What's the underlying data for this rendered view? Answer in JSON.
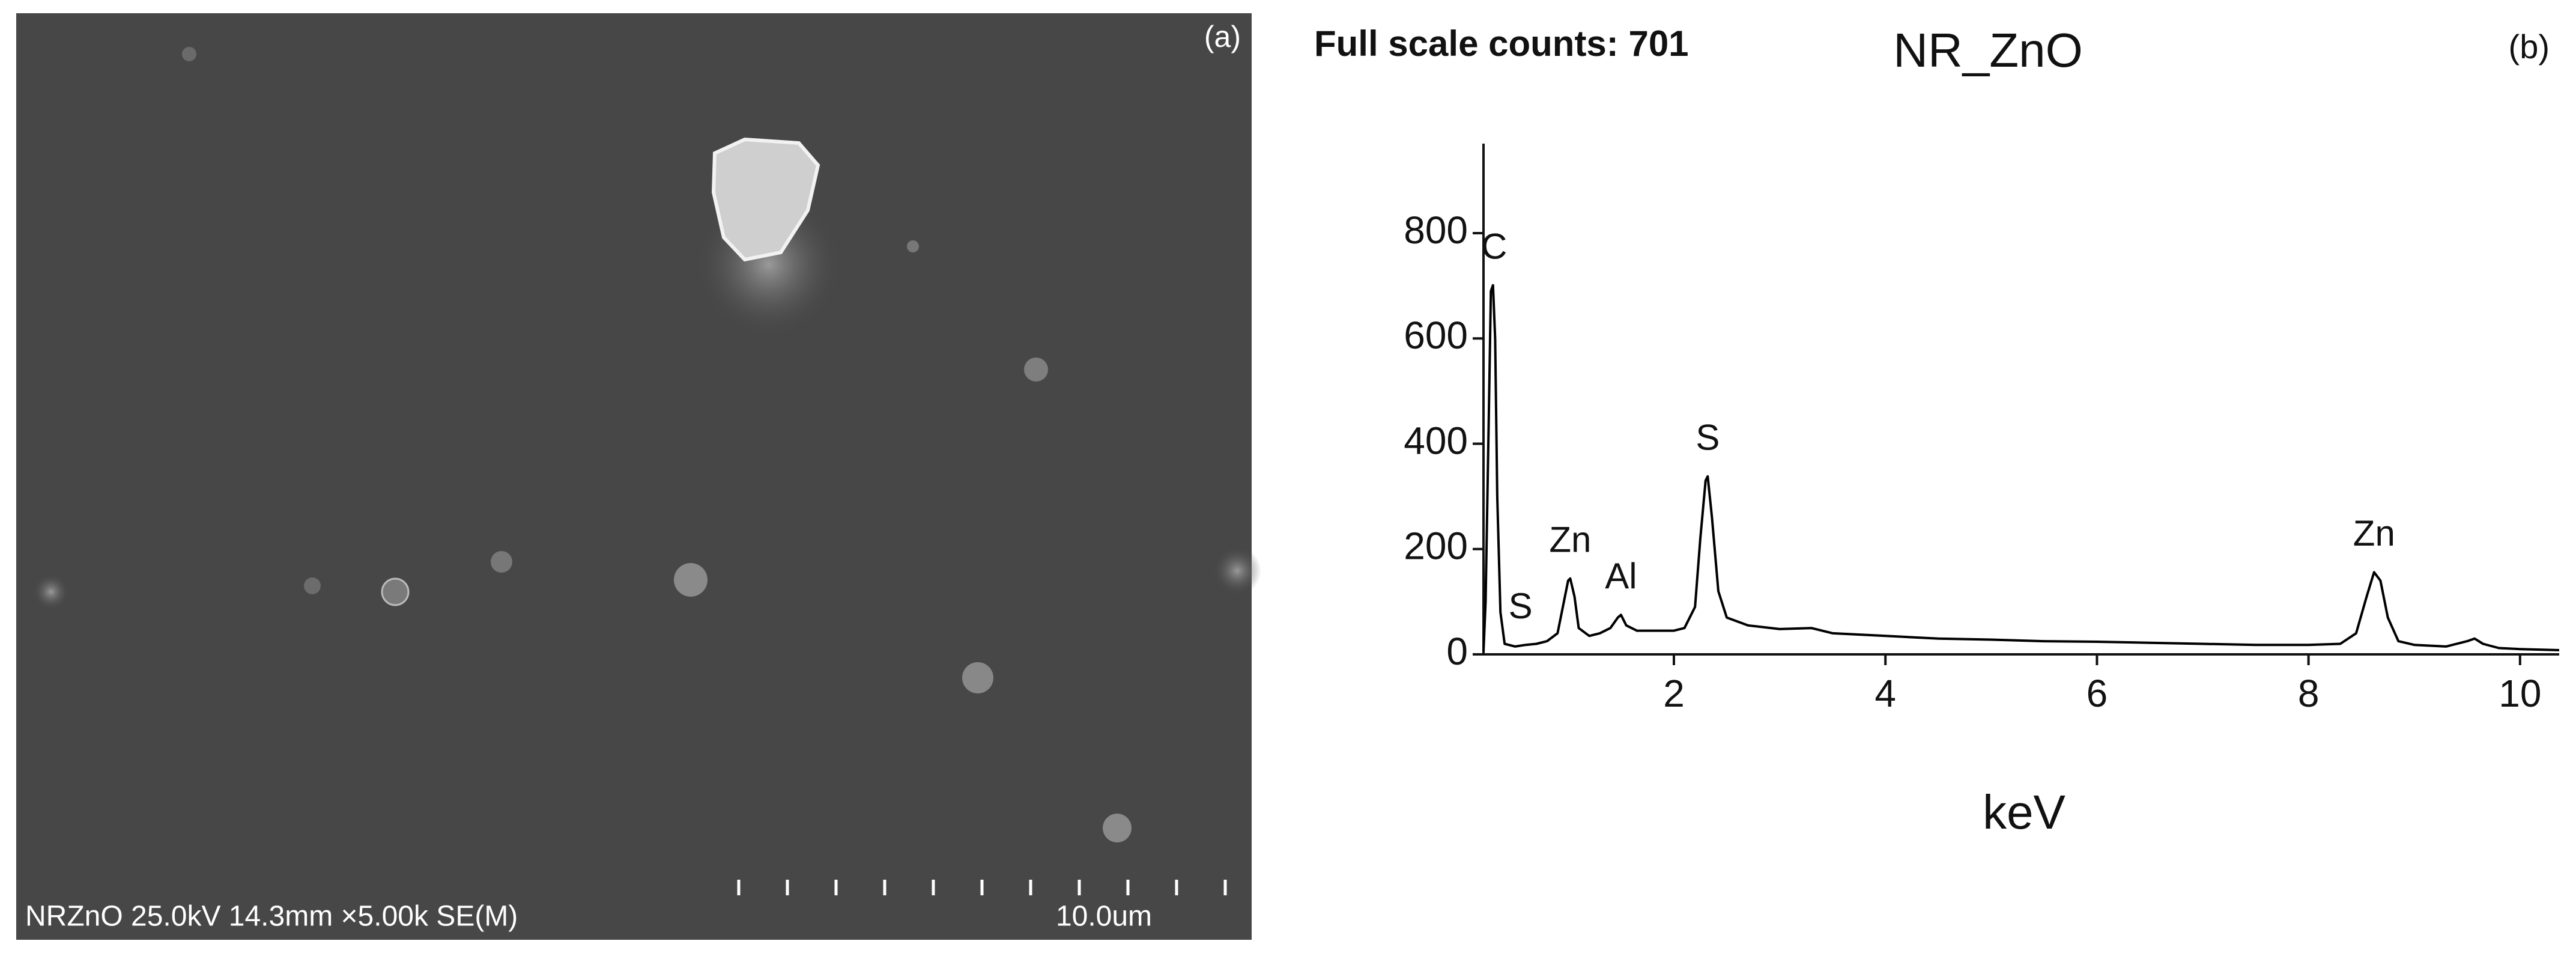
{
  "sem": {
    "panel_label": "(a)",
    "caption": "NRZnO 25.0kV 14.3mm ×5.00k SE(M)",
    "scale_label": "10.0um"
  },
  "chart_data": {
    "type": "line",
    "title": "NR_ZnO",
    "subtitle": "Full scale counts: 701",
    "panel_label": "(b)",
    "x_label": "keV",
    "color": "#000000",
    "x": [
      0.2,
      0.22,
      0.25,
      0.27,
      0.29,
      0.31,
      0.33,
      0.36,
      0.4,
      0.5,
      0.6,
      0.7,
      0.8,
      0.9,
      0.95,
      1.0,
      1.02,
      1.06,
      1.1,
      1.2,
      1.3,
      1.4,
      1.47,
      1.5,
      1.55,
      1.65,
      1.8,
      2.0,
      2.1,
      2.2,
      2.25,
      2.3,
      2.32,
      2.36,
      2.42,
      2.5,
      2.7,
      3.0,
      3.3,
      3.5,
      4.0,
      4.5,
      5.0,
      5.5,
      6.0,
      6.5,
      7.0,
      7.5,
      8.0,
      8.3,
      8.45,
      8.55,
      8.62,
      8.68,
      8.75,
      8.85,
      9.0,
      9.3,
      9.5,
      9.57,
      9.65,
      9.8,
      10.0,
      10.37
    ],
    "values": [
      5,
      100,
      450,
      690,
      701,
      600,
      300,
      80,
      20,
      15,
      18,
      20,
      25,
      40,
      90,
      140,
      144,
      110,
      50,
      35,
      40,
      50,
      70,
      75,
      55,
      45,
      45,
      45,
      50,
      90,
      220,
      330,
      338,
      260,
      120,
      70,
      55,
      48,
      50,
      40,
      35,
      30,
      28,
      25,
      24,
      22,
      20,
      18,
      18,
      20,
      40,
      110,
      156,
      140,
      70,
      25,
      18,
      15,
      25,
      30,
      20,
      12,
      10,
      8
    ],
    "annotations": [
      {
        "text": "C",
        "x": 0.3
      },
      {
        "text": "S",
        "x": 0.55
      },
      {
        "text": "Zn",
        "x": 1.02
      },
      {
        "text": "Al",
        "x": 1.5
      },
      {
        "text": "S",
        "x": 2.32
      },
      {
        "text": "Zn",
        "x": 8.62
      }
    ],
    "xlim": [
      0.2,
      10.37
    ],
    "ylim": [
      0,
      970
    ],
    "xticks": [
      2,
      4,
      6,
      8,
      10
    ],
    "yticks": [
      0,
      200,
      400,
      600,
      800
    ]
  }
}
